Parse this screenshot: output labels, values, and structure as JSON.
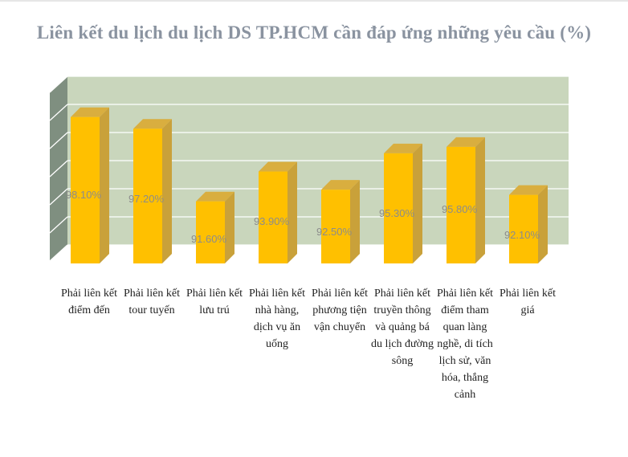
{
  "chart_data": {
    "type": "bar",
    "title": "Liên kết du lịch du lịch DS TP.HCM cần đáp ứng những yêu cầu (%)",
    "categories": [
      "Phải liên kết điểm đến",
      "Phải liên kết tour tuyến",
      "Phải liên kết lưu trú",
      "Phải liên kết nhà hàng, dịch vụ ăn uống",
      "Phải liên kết phương tiện vận chuyển",
      "Phải liên kết truyền thông và quảng bá du lịch đường sông",
      "Phải liên kết điểm tham quan làng nghề, di tích lịch sử, văn hóa, thắng cảnh",
      "Phải liên kết giá"
    ],
    "values": [
      98.1,
      97.2,
      91.6,
      93.9,
      92.5,
      95.3,
      95.8,
      92.1
    ],
    "data_labels": [
      "98.10%",
      "97.20%",
      "91.60%",
      "93.90%",
      "92.50%",
      "95.30%",
      "95.80%",
      "92.10%"
    ],
    "ylim": [
      87,
      100
    ],
    "grid": true,
    "colors": {
      "bar_front": "#ffc000",
      "bar_side": "#c9a13a",
      "bar_top": "#d9ae3f",
      "back_wall": "#c9d6bc",
      "side_wall": "#7f8f80",
      "grid": "#ffffff",
      "data_label": "#8c8c8c"
    }
  }
}
